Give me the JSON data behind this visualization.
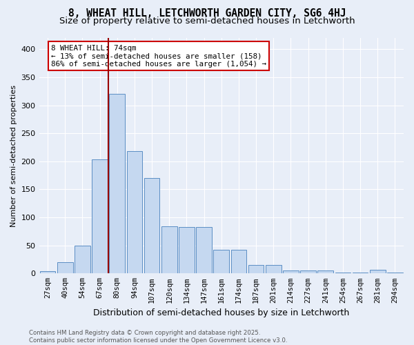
{
  "title": "8, WHEAT HILL, LETCHWORTH GARDEN CITY, SG6 4HJ",
  "subtitle": "Size of property relative to semi-detached houses in Letchworth",
  "xlabel": "Distribution of semi-detached houses by size in Letchworth",
  "ylabel": "Number of semi-detached properties",
  "categories": [
    "27sqm",
    "40sqm",
    "54sqm",
    "67sqm",
    "80sqm",
    "94sqm",
    "107sqm",
    "120sqm",
    "134sqm",
    "147sqm",
    "161sqm",
    "174sqm",
    "187sqm",
    "201sqm",
    "214sqm",
    "227sqm",
    "241sqm",
    "254sqm",
    "267sqm",
    "281sqm",
    "294sqm"
  ],
  "values": [
    4,
    20,
    50,
    203,
    320,
    218,
    170,
    84,
    83,
    83,
    42,
    42,
    15,
    15,
    5,
    5,
    5,
    1,
    1,
    6,
    2
  ],
  "bar_color": "#c5d8f0",
  "bar_edge_color": "#5b8ec4",
  "vline_x": 3.5,
  "vline_color": "#990000",
  "annotation_title": "8 WHEAT HILL: 74sqm",
  "annotation_line1": "← 13% of semi-detached houses are smaller (158)",
  "annotation_line2": "86% of semi-detached houses are larger (1,054) →",
  "annotation_box_color": "#ffffff",
  "annotation_box_edge": "#cc0000",
  "ylim": [
    0,
    420
  ],
  "yticks": [
    0,
    50,
    100,
    150,
    200,
    250,
    300,
    350,
    400
  ],
  "footer_line1": "Contains HM Land Registry data © Crown copyright and database right 2025.",
  "footer_line2": "Contains public sector information licensed under the Open Government Licence v3.0.",
  "bg_color": "#e8eef8",
  "title_fontsize": 10.5,
  "subtitle_fontsize": 9.5,
  "annotation_fontsize": 7.8
}
